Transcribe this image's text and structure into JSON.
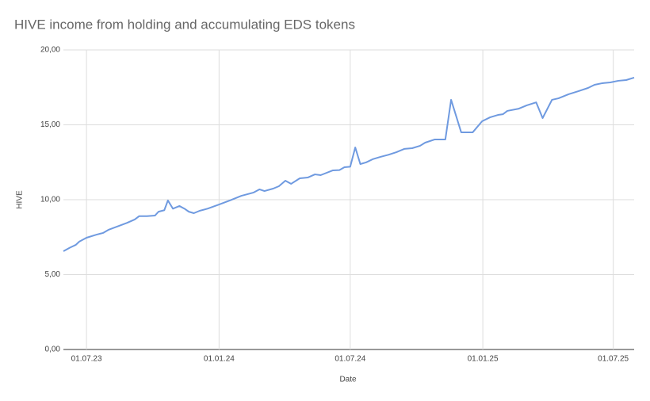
{
  "chart_data": {
    "type": "line",
    "title": "HIVE income from holding and accumulating EDS tokens",
    "x_label": "Date",
    "y_label": "HIVE",
    "grid": true,
    "xlim": [
      "2023-05-30",
      "2025-07-30"
    ],
    "xticks": [
      {
        "value": "2023-07-01",
        "label": "01.07.23"
      },
      {
        "value": "2024-01-01",
        "label": "01.01.24"
      },
      {
        "value": "2024-07-01",
        "label": "01.07.24"
      },
      {
        "value": "2025-01-01",
        "label": "01.01.25"
      },
      {
        "value": "2025-07-01",
        "label": "01.07.25"
      }
    ],
    "ylim": [
      0,
      20
    ],
    "yticks": [
      {
        "value": 0,
        "label": "0,00"
      },
      {
        "value": 5,
        "label": "5,00"
      },
      {
        "value": 10,
        "label": "10,00"
      },
      {
        "value": 15,
        "label": "15,00"
      },
      {
        "value": 20,
        "label": "20,00"
      }
    ],
    "x": [
      "2023-05-30",
      "2023-06-08",
      "2023-06-16",
      "2023-06-21",
      "2023-07-01",
      "2023-07-15",
      "2023-07-24",
      "2023-08-01",
      "2023-08-15",
      "2023-08-26",
      "2023-09-06",
      "2023-09-12",
      "2023-09-23",
      "2023-10-04",
      "2023-10-09",
      "2023-10-17",
      "2023-10-22",
      "2023-10-29",
      "2023-11-07",
      "2023-11-14",
      "2023-11-20",
      "2023-11-27",
      "2023-12-05",
      "2023-12-16",
      "2024-01-01",
      "2024-01-16",
      "2024-02-01",
      "2024-02-18",
      "2024-02-26",
      "2024-03-04",
      "2024-03-16",
      "2024-03-24",
      "2024-04-02",
      "2024-04-10",
      "2024-04-22",
      "2024-05-03",
      "2024-05-13",
      "2024-05-21",
      "2024-06-07",
      "2024-06-16",
      "2024-06-23",
      "2024-07-01",
      "2024-07-08",
      "2024-07-15",
      "2024-07-23",
      "2024-08-01",
      "2024-08-12",
      "2024-08-23",
      "2024-09-03",
      "2024-09-14",
      "2024-09-25",
      "2024-10-06",
      "2024-10-13",
      "2024-10-26",
      "2024-11-10",
      "2024-11-18",
      "2024-12-02",
      "2024-12-18",
      "2024-12-31",
      "2025-01-11",
      "2025-01-22",
      "2025-01-29",
      "2025-02-04",
      "2025-02-20",
      "2025-03-03",
      "2025-03-16",
      "2025-03-25",
      "2025-04-07",
      "2025-04-16",
      "2025-04-30",
      "2025-05-14",
      "2025-05-27",
      "2025-06-05",
      "2025-06-16",
      "2025-06-27",
      "2025-07-08",
      "2025-07-19",
      "2025-07-30"
    ],
    "series": [
      {
        "name": "HIVE",
        "color": "#6f9ae0",
        "values": [
          6.56,
          6.8,
          6.98,
          7.2,
          7.46,
          7.67,
          7.78,
          8.0,
          8.25,
          8.45,
          8.68,
          8.9,
          8.9,
          8.94,
          9.2,
          9.3,
          9.95,
          9.4,
          9.58,
          9.4,
          9.2,
          9.1,
          9.26,
          9.4,
          9.68,
          9.95,
          10.26,
          10.48,
          10.69,
          10.58,
          10.74,
          10.9,
          11.27,
          11.06,
          11.43,
          11.48,
          11.69,
          11.64,
          11.96,
          11.98,
          12.17,
          12.2,
          13.49,
          12.38,
          12.49,
          12.7,
          12.86,
          13.0,
          13.17,
          13.39,
          13.44,
          13.6,
          13.81,
          14.02,
          14.02,
          16.67,
          14.5,
          14.5,
          15.24,
          15.5,
          15.66,
          15.71,
          15.93,
          16.08,
          16.3,
          16.5,
          15.45,
          16.67,
          16.77,
          17.04,
          17.25,
          17.46,
          17.67,
          17.78,
          17.83,
          17.94,
          17.99,
          18.15
        ]
      }
    ]
  }
}
